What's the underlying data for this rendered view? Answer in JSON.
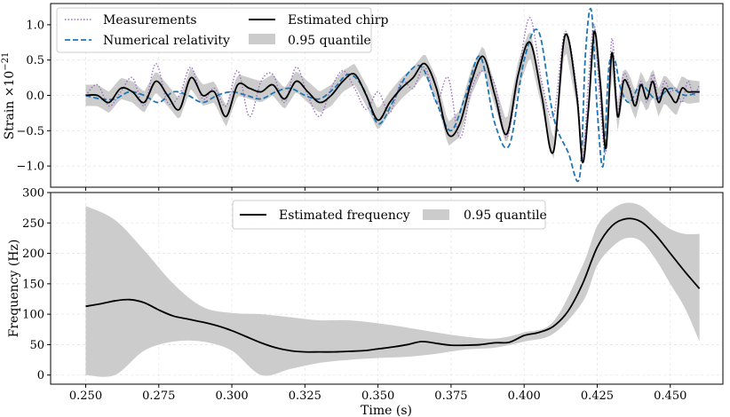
{
  "chart_data": [
    {
      "type": "line",
      "xlabel": "",
      "ylabel": "Strain ×10",
      "ylabel_exponent": "−21",
      "xlim": [
        0.238,
        0.468
      ],
      "ylim": [
        -1.3,
        1.3
      ],
      "yticks": [
        -1.0,
        -0.5,
        0.0,
        0.5,
        1.0
      ],
      "ytick_labels": [
        "−1.0",
        "−0.5",
        "0.0",
        "0.5",
        "1.0"
      ],
      "grid": true,
      "legend": {
        "placement": "top-left",
        "entries": [
          "Measurements",
          "Numerical relativity",
          "Estimated chirp",
          "0.95 quantile"
        ]
      },
      "series": [
        {
          "name": "Measurements",
          "style": "dotted",
          "color": "#9b6fc0",
          "x": [
            0.25,
            0.254,
            0.258,
            0.262,
            0.266,
            0.27,
            0.274,
            0.278,
            0.282,
            0.286,
            0.29,
            0.294,
            0.298,
            0.302,
            0.306,
            0.31,
            0.314,
            0.318,
            0.322,
            0.326,
            0.33,
            0.334,
            0.338,
            0.342,
            0.346,
            0.35,
            0.354,
            0.358,
            0.362,
            0.366,
            0.37,
            0.374,
            0.378,
            0.382,
            0.386,
            0.39,
            0.394,
            0.398,
            0.402,
            0.406,
            0.41,
            0.414,
            0.418,
            0.42,
            0.422,
            0.424,
            0.426,
            0.428,
            0.43,
            0.432,
            0.434,
            0.436,
            0.438,
            0.44,
            0.442,
            0.444,
            0.446,
            0.448,
            0.45,
            0.452,
            0.454,
            0.456,
            0.458,
            0.46
          ],
          "y": [
            0.0,
            0.15,
            -0.15,
            0.05,
            0.25,
            -0.15,
            0.45,
            -0.1,
            0.0,
            0.4,
            -0.05,
            0.1,
            -0.15,
            0.35,
            -0.3,
            0.2,
            0.3,
            -0.1,
            0.4,
            0.0,
            -0.3,
            0.1,
            0.35,
            0.1,
            -0.2,
            0.05,
            -0.25,
            0.2,
            0.1,
            0.4,
            -0.1,
            0.25,
            -0.6,
            0.1,
            0.35,
            0.15,
            -0.6,
            0.3,
            1.1,
            0.2,
            -0.3,
            0.9,
            0.1,
            -0.9,
            0.2,
            1.0,
            -0.1,
            -0.8,
            0.8,
            -0.2,
            0.3,
            0.15,
            -0.1,
            0.2,
            -0.1,
            0.3,
            -0.05,
            0.2,
            0.05,
            0.1,
            -0.1,
            0.2,
            0.0,
            0.15
          ]
        },
        {
          "name": "Numerical relativity",
          "style": "dashed",
          "color": "#1f77b4",
          "x": [
            0.25,
            0.255,
            0.26,
            0.265,
            0.27,
            0.275,
            0.28,
            0.285,
            0.29,
            0.295,
            0.3,
            0.305,
            0.31,
            0.315,
            0.32,
            0.325,
            0.33,
            0.335,
            0.34,
            0.345,
            0.35,
            0.355,
            0.36,
            0.365,
            0.37,
            0.375,
            0.38,
            0.385,
            0.39,
            0.395,
            0.4,
            0.405,
            0.41,
            0.415,
            0.419,
            0.421,
            0.423,
            0.425,
            0.427,
            0.429,
            0.431,
            0.433,
            0.436,
            0.44,
            0.445,
            0.45,
            0.455,
            0.46
          ],
          "y": [
            0.0,
            -0.05,
            -0.05,
            0.05,
            0.0,
            -0.1,
            0.05,
            0.0,
            -0.1,
            0.0,
            0.05,
            0.0,
            -0.05,
            0.05,
            0.1,
            0.0,
            -0.05,
            0.1,
            0.3,
            0.1,
            -0.4,
            -0.1,
            0.3,
            0.4,
            -0.1,
            -0.5,
            0.0,
            0.55,
            -0.4,
            -0.7,
            0.5,
            0.9,
            -0.3,
            -0.8,
            -1.15,
            0.6,
            1.2,
            -0.2,
            -1.0,
            0.4,
            0.5,
            0.1,
            -0.1,
            0.15,
            -0.05,
            0.1,
            0.0,
            0.05
          ]
        },
        {
          "name": "Estimated chirp",
          "style": "solid",
          "color": "#000000",
          "x": [
            0.25,
            0.254,
            0.258,
            0.262,
            0.266,
            0.27,
            0.274,
            0.278,
            0.282,
            0.286,
            0.29,
            0.294,
            0.298,
            0.302,
            0.306,
            0.31,
            0.314,
            0.318,
            0.322,
            0.326,
            0.33,
            0.334,
            0.338,
            0.342,
            0.346,
            0.35,
            0.354,
            0.358,
            0.362,
            0.366,
            0.37,
            0.374,
            0.378,
            0.382,
            0.386,
            0.39,
            0.394,
            0.398,
            0.402,
            0.406,
            0.41,
            0.414,
            0.418,
            0.42,
            0.422,
            0.424,
            0.426,
            0.428,
            0.43,
            0.432,
            0.434,
            0.436,
            0.438,
            0.44,
            0.442,
            0.444,
            0.446,
            0.448,
            0.45,
            0.452,
            0.454,
            0.456,
            0.458,
            0.46
          ],
          "y": [
            0.0,
            0.0,
            -0.1,
            0.1,
            0.05,
            -0.1,
            0.2,
            0.0,
            -0.2,
            0.25,
            0.0,
            0.05,
            -0.3,
            0.15,
            0.1,
            0.05,
            0.15,
            -0.05,
            0.2,
            0.05,
            -0.1,
            0.0,
            0.2,
            0.3,
            0.0,
            -0.35,
            -0.1,
            0.1,
            0.25,
            0.45,
            0.1,
            -0.55,
            -0.4,
            0.2,
            0.55,
            0.0,
            -0.55,
            0.3,
            0.75,
            0.0,
            -0.8,
            0.85,
            0.0,
            -0.95,
            -0.2,
            0.9,
            0.2,
            -0.75,
            0.6,
            -0.3,
            0.2,
            0.1,
            -0.15,
            0.15,
            -0.05,
            0.2,
            -0.1,
            0.1,
            0.0,
            -0.1,
            0.1,
            0.05,
            0.05,
            0.05
          ]
        }
      ],
      "band": {
        "name": "0.95 quantile",
        "color": "#cccccc",
        "x": [
          0.25,
          0.26,
          0.27,
          0.28,
          0.29,
          0.3,
          0.31,
          0.32,
          0.33,
          0.34,
          0.35,
          0.36,
          0.37,
          0.38,
          0.39,
          0.4,
          0.41,
          0.42,
          0.43,
          0.44,
          0.45,
          0.46
        ],
        "half_width": [
          0.15,
          0.15,
          0.15,
          0.15,
          0.15,
          0.15,
          0.15,
          0.15,
          0.15,
          0.15,
          0.15,
          0.15,
          0.15,
          0.2,
          0.15,
          0.2,
          0.15,
          0.15,
          0.2,
          0.2,
          0.2,
          0.15
        ]
      }
    },
    {
      "type": "line",
      "xlabel": "Time (s)",
      "ylabel": "Frequency (Hz)",
      "xlim": [
        0.238,
        0.468
      ],
      "ylim": [
        -15,
        300
      ],
      "xticks": [
        0.25,
        0.275,
        0.3,
        0.325,
        0.35,
        0.375,
        0.4,
        0.425,
        0.45
      ],
      "xtick_labels": [
        "0.250",
        "0.275",
        "0.300",
        "0.325",
        "0.350",
        "0.375",
        "0.400",
        "0.425",
        "0.450"
      ],
      "yticks": [
        0,
        50,
        100,
        150,
        200,
        250,
        300
      ],
      "ytick_labels": [
        "0",
        "50",
        "100",
        "150",
        "200",
        "250",
        "300"
      ],
      "grid": true,
      "legend": {
        "placement": "top-center",
        "entries": [
          "Estimated frequency",
          "0.95 quantile"
        ]
      },
      "series": [
        {
          "name": "Estimated frequency",
          "style": "solid",
          "color": "#000000",
          "x": [
            0.25,
            0.255,
            0.26,
            0.265,
            0.27,
            0.275,
            0.28,
            0.285,
            0.29,
            0.295,
            0.3,
            0.305,
            0.31,
            0.315,
            0.32,
            0.325,
            0.33,
            0.335,
            0.34,
            0.345,
            0.35,
            0.355,
            0.36,
            0.365,
            0.37,
            0.375,
            0.38,
            0.385,
            0.39,
            0.395,
            0.4,
            0.405,
            0.41,
            0.415,
            0.42,
            0.425,
            0.43,
            0.435,
            0.44,
            0.445,
            0.45,
            0.455,
            0.46
          ],
          "y": [
            113,
            117,
            122,
            124,
            119,
            107,
            97,
            92,
            87,
            81,
            73,
            63,
            53,
            45,
            40,
            38,
            38,
            38,
            39,
            40,
            43,
            46,
            50,
            55,
            52,
            49,
            49,
            50,
            53,
            54,
            65,
            70,
            80,
            105,
            150,
            210,
            245,
            257,
            252,
            230,
            200,
            170,
            142
          ]
        }
      ],
      "band": {
        "name": "0.95 quantile",
        "color": "#cccccc",
        "x": [
          0.25,
          0.26,
          0.27,
          0.28,
          0.29,
          0.3,
          0.31,
          0.32,
          0.33,
          0.34,
          0.35,
          0.36,
          0.37,
          0.38,
          0.39,
          0.4,
          0.41,
          0.42,
          0.425,
          0.43,
          0.435,
          0.44,
          0.445,
          0.45,
          0.455,
          0.46
        ],
        "lower": [
          0,
          0,
          40,
          55,
          55,
          40,
          0,
          10,
          20,
          25,
          28,
          30,
          35,
          42,
          45,
          55,
          68,
          120,
          180,
          210,
          225,
          220,
          190,
          150,
          110,
          55
        ],
        "upper": [
          278,
          255,
          205,
          150,
          112,
          102,
          100,
          95,
          90,
          90,
          85,
          78,
          70,
          63,
          60,
          70,
          88,
          180,
          245,
          272,
          283,
          278,
          258,
          240,
          232,
          232
        ]
      }
    }
  ]
}
